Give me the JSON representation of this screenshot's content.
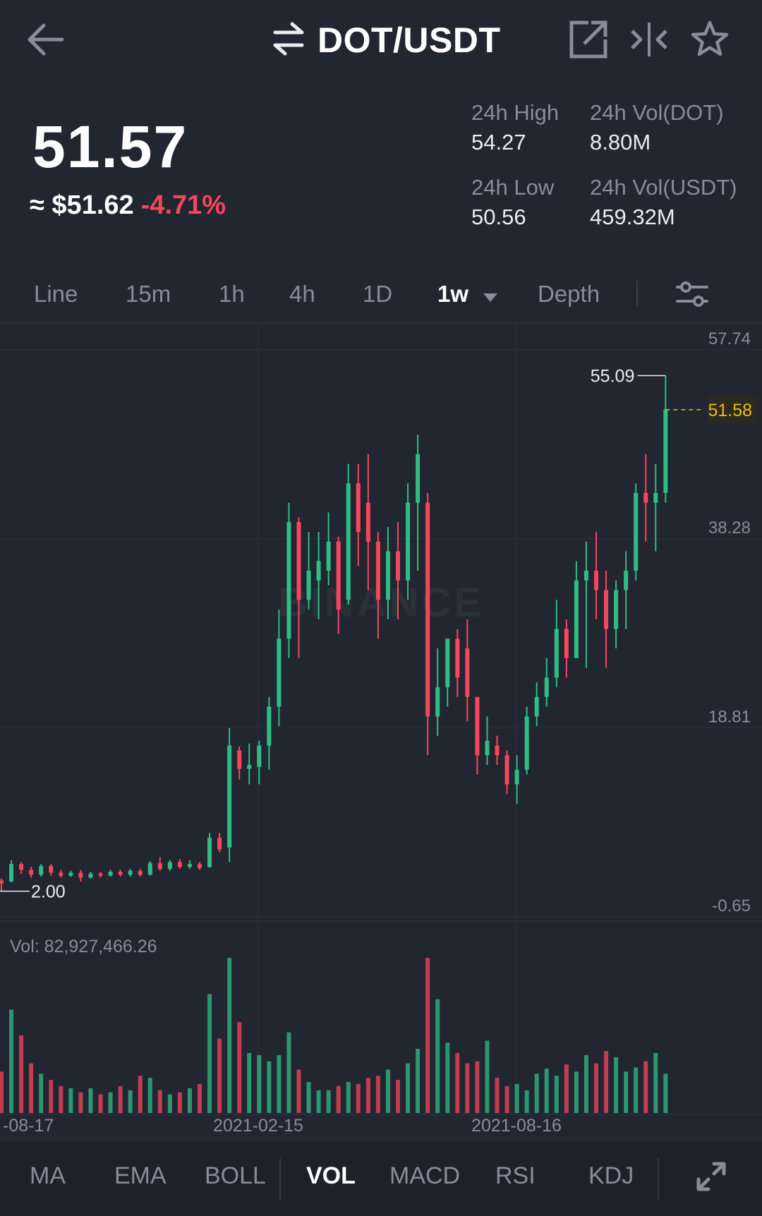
{
  "header": {
    "pair": "DOT/USDT",
    "icons": [
      "back-arrow-icon",
      "swap-icon",
      "share-external-icon",
      "split-screen-icon",
      "star-icon"
    ]
  },
  "ticker": {
    "last_price": "51.57",
    "approx_prefix": "≈ ",
    "approx_usd": "$51.62",
    "change_pct": "-4.71%",
    "stats": [
      {
        "label": "24h High",
        "value": "54.27"
      },
      {
        "label": "24h Vol(DOT)",
        "value": "8.80M"
      },
      {
        "label": "24h Low",
        "value": "50.56"
      },
      {
        "label": "24h Vol(USDT)",
        "value": "459.32M"
      }
    ]
  },
  "timeframes": {
    "tabs": [
      "Line",
      "15m",
      "1h",
      "4h",
      "1D",
      "1w",
      "Depth"
    ],
    "active": "1w",
    "settings_icon": "sliders-icon"
  },
  "chart_data": {
    "type": "candlestick",
    "interval": "1w",
    "y_ticks": [
      "57.74",
      "38.28",
      "18.81",
      "-0.65"
    ],
    "ylim": [
      -0.65,
      57.74
    ],
    "x_ticks": [
      "-08-17",
      "2021-02-15",
      "2021-08-16"
    ],
    "watermark": "BINANCE",
    "max_marker": "55.09",
    "min_marker": "2.00",
    "last_price_line": "51.58",
    "candles": [
      [
        3.1,
        2.8,
        3.3,
        2.0
      ],
      [
        3.0,
        4.8,
        5.2,
        2.9
      ],
      [
        4.8,
        4.2,
        5.0,
        3.8
      ],
      [
        4.2,
        3.7,
        4.5,
        3.4
      ],
      [
        3.7,
        4.6,
        4.8,
        3.5
      ],
      [
        4.6,
        3.9,
        4.8,
        3.6
      ],
      [
        3.9,
        3.6,
        4.2,
        3.4
      ],
      [
        3.6,
        3.9,
        4.1,
        3.5
      ],
      [
        3.9,
        3.4,
        4.2,
        3.0
      ],
      [
        3.4,
        3.8,
        4.0,
        3.3
      ],
      [
        3.8,
        3.6,
        4.0,
        3.4
      ],
      [
        3.6,
        4.0,
        4.2,
        3.5
      ],
      [
        4.0,
        3.7,
        4.2,
        3.5
      ],
      [
        3.7,
        4.1,
        4.3,
        3.5
      ],
      [
        4.1,
        3.7,
        4.3,
        3.5
      ],
      [
        3.7,
        4.9,
        5.1,
        3.6
      ],
      [
        4.9,
        4.3,
        5.5,
        4.1
      ],
      [
        4.3,
        5.0,
        5.2,
        4.1
      ],
      [
        5.0,
        4.5,
        5.3,
        4.3
      ],
      [
        4.5,
        4.8,
        5.2,
        4.3
      ],
      [
        4.8,
        4.4,
        5.0,
        4.2
      ],
      [
        4.5,
        7.5,
        8.0,
        4.4
      ],
      [
        7.5,
        6.3,
        8.0,
        6.0
      ],
      [
        6.5,
        17.0,
        18.8,
        5.0
      ],
      [
        16.5,
        14.6,
        16.9,
        13.5
      ],
      [
        14.6,
        15.0,
        17.2,
        13.0
      ],
      [
        14.8,
        17.0,
        17.5,
        13.0
      ],
      [
        17.0,
        21.0,
        22.0,
        14.5
      ],
      [
        21.0,
        28.0,
        31.0,
        19.0
      ],
      [
        28.0,
        40.0,
        42.0,
        26.0
      ],
      [
        40.0,
        32.0,
        40.5,
        26.0
      ],
      [
        32.0,
        35.0,
        39.0,
        31.0
      ],
      [
        34.0,
        36.0,
        39.0,
        30.0
      ],
      [
        35.0,
        38.0,
        41.0,
        33.5
      ],
      [
        38.0,
        31.0,
        38.5,
        28.5
      ],
      [
        32.0,
        44.0,
        46.0,
        31.5
      ],
      [
        44.0,
        39.0,
        46.0,
        35.5
      ],
      [
        42.0,
        38.0,
        47.0,
        33.0
      ],
      [
        38.0,
        32.0,
        39.0,
        28.0
      ],
      [
        32.0,
        37.0,
        39.5,
        30.0
      ],
      [
        37.0,
        34.0,
        40.0,
        30.0
      ],
      [
        34.0,
        42.0,
        44.0,
        32.0
      ],
      [
        42.0,
        47.0,
        49.0,
        35.0
      ],
      [
        42.0,
        20.0,
        43.0,
        16.0
      ],
      [
        20.0,
        23.0,
        27.0,
        18.0
      ],
      [
        23.0,
        28.0,
        28.0,
        21.0
      ],
      [
        28.0,
        24.0,
        29.0,
        22.0
      ],
      [
        27.0,
        22.0,
        30.0,
        19.5
      ],
      [
        22.0,
        16.0,
        22.0,
        14.0
      ],
      [
        16.0,
        17.5,
        20.0,
        15.0
      ],
      [
        17.0,
        16.0,
        18.0,
        15.0
      ],
      [
        16.0,
        13.0,
        16.5,
        12.0
      ],
      [
        13.0,
        14.5,
        16.0,
        11.0
      ],
      [
        14.5,
        20.0,
        21.0,
        14.0
      ],
      [
        20.0,
        22.0,
        23.5,
        19.0
      ],
      [
        22.0,
        24.0,
        26.0,
        21.0
      ],
      [
        24.0,
        29.0,
        32.0,
        23.0
      ],
      [
        29.0,
        26.0,
        30.0,
        24.0
      ],
      [
        26.0,
        34.0,
        36.0,
        27.0
      ],
      [
        34.0,
        35.0,
        38.0,
        25.0
      ],
      [
        35.0,
        33.0,
        39.0,
        30.0
      ],
      [
        33.0,
        29.0,
        35.0,
        25.0
      ],
      [
        29.0,
        33.0,
        34.0,
        27.0
      ],
      [
        33.0,
        35.0,
        37.0,
        29.0
      ],
      [
        35.0,
        43.0,
        44.0,
        34.0
      ],
      [
        43.0,
        42.0,
        47.0,
        38.0
      ],
      [
        42.0,
        43.0,
        46.0,
        37.0
      ],
      [
        43.0,
        51.6,
        55.1,
        42.0
      ]
    ],
    "volume": {
      "label": "Vol: 82,927,466.26",
      "values": [
        40,
        100,
        75,
        48,
        38,
        32,
        26,
        24,
        20,
        24,
        18,
        20,
        26,
        22,
        36,
        34,
        22,
        18,
        20,
        24,
        28,
        115,
        72,
        150,
        88,
        58,
        56,
        50,
        56,
        78,
        42,
        30,
        22,
        22,
        26,
        30,
        28,
        34,
        36,
        42,
        32,
        48,
        62,
        150,
        110,
        68,
        58,
        48,
        50,
        70,
        34,
        26,
        28,
        22,
        38,
        43,
        36,
        47,
        40,
        56,
        48,
        60,
        54,
        40,
        44,
        50,
        58,
        38
      ]
    }
  },
  "indicators": {
    "tabs": [
      "MA",
      "EMA",
      "BOLL",
      "VOL",
      "MACD",
      "RSI",
      "KDJ"
    ],
    "active": "VOL",
    "expand_icon": "expand-icon"
  }
}
